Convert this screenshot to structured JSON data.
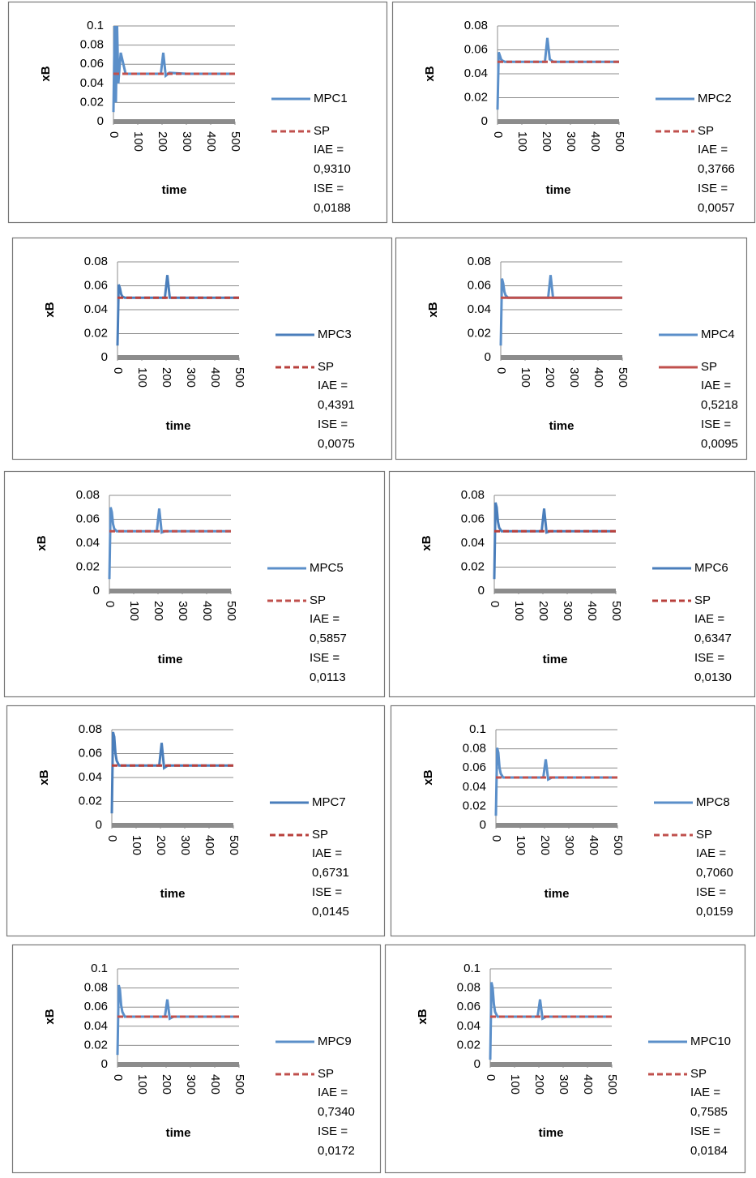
{
  "chart_data": [
    {
      "type": "line",
      "xlabel": "time",
      "ylabel": "xB",
      "x": [
        0,
        5,
        10,
        15,
        20,
        30,
        50,
        100,
        195,
        205,
        215,
        230,
        300,
        400,
        500
      ],
      "xlim": [
        0,
        500
      ],
      "xticks": [
        0,
        100,
        200,
        300,
        400,
        500
      ],
      "ylim": [
        0,
        0.1
      ],
      "yticks": [
        0,
        0.02,
        0.04,
        0.06,
        0.08,
        0.1
      ],
      "grid": true,
      "series": [
        {
          "name": "MPC1",
          "color": "#5b8fc9",
          "dashed": false,
          "values": [
            0.01,
            0.1,
            0.02,
            0.1,
            0.04,
            0.072,
            0.05,
            0.05,
            0.05,
            0.072,
            0.048,
            0.051,
            0.05,
            0.05,
            0.05
          ]
        },
        {
          "name": "SP",
          "color": "#c0504d",
          "dashed": true,
          "values": [
            0.05,
            0.05,
            0.05,
            0.05,
            0.05,
            0.05,
            0.05,
            0.05,
            0.05,
            0.05,
            0.05,
            0.05,
            0.05,
            0.05,
            0.05
          ]
        }
      ],
      "annotations": [
        "IAE =",
        "0,9310",
        "ISE =",
        "0,0188"
      ]
    },
    {
      "type": "line",
      "xlabel": "time",
      "ylabel": "xB",
      "x": [
        0,
        5,
        10,
        15,
        20,
        30,
        50,
        100,
        195,
        205,
        215,
        230,
        300,
        400,
        500
      ],
      "xlim": [
        0,
        500
      ],
      "xticks": [
        0,
        100,
        200,
        300,
        400,
        500
      ],
      "ylim": [
        0,
        0.08
      ],
      "yticks": [
        0,
        0.02,
        0.04,
        0.06,
        0.08
      ],
      "grid": true,
      "series": [
        {
          "name": "MPC2",
          "color": "#5b8fc9",
          "dashed": false,
          "values": [
            0.01,
            0.058,
            0.055,
            0.052,
            0.051,
            0.05,
            0.05,
            0.05,
            0.05,
            0.07,
            0.052,
            0.05,
            0.05,
            0.05,
            0.05
          ]
        },
        {
          "name": "SP",
          "color": "#c0504d",
          "dashed": true,
          "values": [
            0.05,
            0.05,
            0.05,
            0.05,
            0.05,
            0.05,
            0.05,
            0.05,
            0.05,
            0.05,
            0.05,
            0.05,
            0.05,
            0.05,
            0.05
          ]
        }
      ],
      "annotations": [
        "IAE =",
        "0,3766",
        "ISE =",
        "0,0057"
      ]
    },
    {
      "type": "line",
      "xlabel": "time",
      "ylabel": "xB",
      "x": [
        0,
        5,
        10,
        15,
        20,
        30,
        50,
        100,
        195,
        205,
        215,
        230,
        300,
        400,
        500
      ],
      "xlim": [
        0,
        500
      ],
      "xticks": [
        0,
        100,
        200,
        300,
        400,
        500
      ],
      "ylim": [
        0,
        0.08
      ],
      "yticks": [
        0,
        0.02,
        0.04,
        0.06,
        0.08
      ],
      "grid": true,
      "series": [
        {
          "name": "MPC3",
          "color": "#4a7ebb",
          "dashed": false,
          "values": [
            0.01,
            0.061,
            0.058,
            0.053,
            0.051,
            0.05,
            0.05,
            0.05,
            0.05,
            0.069,
            0.05,
            0.05,
            0.05,
            0.05,
            0.05
          ]
        },
        {
          "name": "SP",
          "color": "#b8403c",
          "dashed": true,
          "values": [
            0.05,
            0.05,
            0.05,
            0.05,
            0.05,
            0.05,
            0.05,
            0.05,
            0.05,
            0.05,
            0.05,
            0.05,
            0.05,
            0.05,
            0.05
          ]
        }
      ],
      "annotations": [
        "IAE =",
        "0,4391",
        "ISE =",
        "0,0075"
      ]
    },
    {
      "type": "line",
      "xlabel": "time",
      "ylabel": "xB",
      "x": [
        0,
        5,
        10,
        15,
        20,
        30,
        50,
        100,
        195,
        205,
        215,
        230,
        300,
        400,
        500
      ],
      "xlim": [
        0,
        500
      ],
      "xticks": [
        0,
        100,
        200,
        300,
        400,
        500
      ],
      "ylim": [
        0,
        0.08
      ],
      "yticks": [
        0,
        0.02,
        0.04,
        0.06,
        0.08
      ],
      "grid": true,
      "series": [
        {
          "name": "MPC4",
          "color": "#5b8fc9",
          "dashed": false,
          "values": [
            0.01,
            0.066,
            0.062,
            0.055,
            0.052,
            0.05,
            0.05,
            0.05,
            0.05,
            0.069,
            0.05,
            0.05,
            0.05,
            0.05,
            0.05
          ]
        },
        {
          "name": "SP",
          "color": "#c0504d",
          "dashed": false,
          "values": [
            0.05,
            0.05,
            0.05,
            0.05,
            0.05,
            0.05,
            0.05,
            0.05,
            0.05,
            0.05,
            0.05,
            0.05,
            0.05,
            0.05,
            0.05
          ]
        }
      ],
      "annotations": [
        "IAE =",
        "0,5218",
        "ISE =",
        "0,0095"
      ]
    },
    {
      "type": "line",
      "xlabel": "time",
      "ylabel": "xB",
      "x": [
        0,
        5,
        10,
        15,
        20,
        30,
        50,
        100,
        195,
        205,
        215,
        230,
        300,
        400,
        500
      ],
      "xlim": [
        0,
        500
      ],
      "xticks": [
        0,
        100,
        200,
        300,
        400,
        500
      ],
      "ylim": [
        0,
        0.08
      ],
      "yticks": [
        0,
        0.02,
        0.04,
        0.06,
        0.08
      ],
      "grid": true,
      "series": [
        {
          "name": "MPC5",
          "color": "#5b8fc9",
          "dashed": false,
          "values": [
            0.01,
            0.07,
            0.066,
            0.056,
            0.052,
            0.05,
            0.05,
            0.05,
            0.05,
            0.069,
            0.049,
            0.05,
            0.05,
            0.05,
            0.05
          ]
        },
        {
          "name": "SP",
          "color": "#c0504d",
          "dashed": true,
          "values": [
            0.05,
            0.05,
            0.05,
            0.05,
            0.05,
            0.05,
            0.05,
            0.05,
            0.05,
            0.05,
            0.05,
            0.05,
            0.05,
            0.05,
            0.05
          ]
        }
      ],
      "annotations": [
        "IAE =",
        "0,5857",
        "ISE =",
        "0,0113"
      ]
    },
    {
      "type": "line",
      "xlabel": "time",
      "ylabel": "xB",
      "x": [
        0,
        5,
        10,
        15,
        20,
        30,
        50,
        100,
        195,
        205,
        215,
        230,
        300,
        400,
        500
      ],
      "xlim": [
        0,
        500
      ],
      "xticks": [
        0,
        100,
        200,
        300,
        400,
        500
      ],
      "ylim": [
        0,
        0.08
      ],
      "yticks": [
        0,
        0.02,
        0.04,
        0.06,
        0.08
      ],
      "grid": true,
      "series": [
        {
          "name": "MPC6",
          "color": "#4a7ebb",
          "dashed": false,
          "values": [
            0.01,
            0.074,
            0.07,
            0.058,
            0.053,
            0.05,
            0.05,
            0.05,
            0.05,
            0.069,
            0.049,
            0.05,
            0.05,
            0.05,
            0.05
          ]
        },
        {
          "name": "SP",
          "color": "#b8403c",
          "dashed": true,
          "values": [
            0.05,
            0.05,
            0.05,
            0.05,
            0.05,
            0.05,
            0.05,
            0.05,
            0.05,
            0.05,
            0.05,
            0.05,
            0.05,
            0.05,
            0.05
          ]
        }
      ],
      "annotations": [
        "IAE =",
        "0,6347",
        "ISE =",
        "0,0130"
      ]
    },
    {
      "type": "line",
      "xlabel": "time",
      "ylabel": "xB",
      "x": [
        0,
        5,
        10,
        15,
        20,
        30,
        50,
        100,
        195,
        205,
        215,
        230,
        300,
        400,
        500
      ],
      "xlim": [
        0,
        500
      ],
      "xticks": [
        0,
        100,
        200,
        300,
        400,
        500
      ],
      "ylim": [
        0,
        0.08
      ],
      "yticks": [
        0,
        0.02,
        0.04,
        0.06,
        0.08
      ],
      "grid": true,
      "series": [
        {
          "name": "MPC7",
          "color": "#4a7ebb",
          "dashed": false,
          "values": [
            0.01,
            0.078,
            0.074,
            0.06,
            0.054,
            0.05,
            0.05,
            0.05,
            0.05,
            0.069,
            0.048,
            0.05,
            0.05,
            0.05,
            0.05
          ]
        },
        {
          "name": "SP",
          "color": "#b8403c",
          "dashed": true,
          "values": [
            0.05,
            0.05,
            0.05,
            0.05,
            0.05,
            0.05,
            0.05,
            0.05,
            0.05,
            0.05,
            0.05,
            0.05,
            0.05,
            0.05,
            0.05
          ]
        }
      ],
      "annotations": [
        "IAE =",
        "0,6731",
        "ISE =",
        "0,0145"
      ]
    },
    {
      "type": "line",
      "xlabel": "time",
      "ylabel": "xB",
      "x": [
        0,
        5,
        10,
        15,
        20,
        30,
        50,
        100,
        195,
        205,
        215,
        230,
        300,
        400,
        500
      ],
      "xlim": [
        0,
        500
      ],
      "xticks": [
        0,
        100,
        200,
        300,
        400,
        500
      ],
      "ylim": [
        0,
        0.1
      ],
      "yticks": [
        0,
        0.02,
        0.04,
        0.06,
        0.08,
        0.1
      ],
      "grid": true,
      "series": [
        {
          "name": "MPC8",
          "color": "#5b8fc9",
          "dashed": false,
          "values": [
            0.01,
            0.081,
            0.076,
            0.06,
            0.054,
            0.05,
            0.05,
            0.05,
            0.05,
            0.069,
            0.048,
            0.05,
            0.05,
            0.05,
            0.05
          ]
        },
        {
          "name": "SP",
          "color": "#c0504d",
          "dashed": true,
          "values": [
            0.05,
            0.05,
            0.05,
            0.05,
            0.05,
            0.05,
            0.05,
            0.05,
            0.05,
            0.05,
            0.05,
            0.05,
            0.05,
            0.05,
            0.05
          ]
        }
      ],
      "annotations": [
        "IAE =",
        "0,7060",
        "ISE =",
        "0,0159"
      ]
    },
    {
      "type": "line",
      "xlabel": "time",
      "ylabel": "xB",
      "x": [
        0,
        5,
        10,
        15,
        20,
        30,
        50,
        100,
        195,
        205,
        215,
        230,
        300,
        400,
        500
      ],
      "xlim": [
        0,
        500
      ],
      "xticks": [
        0,
        100,
        200,
        300,
        400,
        500
      ],
      "ylim": [
        0,
        0.1
      ],
      "yticks": [
        0,
        0.02,
        0.04,
        0.06,
        0.08,
        0.1
      ],
      "grid": true,
      "series": [
        {
          "name": "MPC9",
          "color": "#5b8fc9",
          "dashed": false,
          "values": [
            0.01,
            0.083,
            0.078,
            0.062,
            0.055,
            0.05,
            0.05,
            0.05,
            0.05,
            0.068,
            0.048,
            0.05,
            0.05,
            0.05,
            0.05
          ]
        },
        {
          "name": "SP",
          "color": "#c0504d",
          "dashed": true,
          "values": [
            0.05,
            0.05,
            0.05,
            0.05,
            0.05,
            0.05,
            0.05,
            0.05,
            0.05,
            0.05,
            0.05,
            0.05,
            0.05,
            0.05,
            0.05
          ]
        }
      ],
      "annotations": [
        "IAE =",
        "0,7340",
        "ISE =",
        "0,0172"
      ]
    },
    {
      "type": "line",
      "xlabel": "time",
      "ylabel": "xB",
      "x": [
        0,
        5,
        10,
        15,
        20,
        30,
        50,
        100,
        195,
        205,
        215,
        230,
        300,
        400,
        500
      ],
      "xlim": [
        0,
        500
      ],
      "xticks": [
        0,
        100,
        200,
        300,
        400,
        500
      ],
      "ylim": [
        0,
        0.1
      ],
      "yticks": [
        0,
        0.02,
        0.04,
        0.06,
        0.08,
        0.1
      ],
      "grid": true,
      "series": [
        {
          "name": "MPC10",
          "color": "#5b8fc9",
          "dashed": false,
          "values": [
            0.005,
            0.086,
            0.08,
            0.063,
            0.055,
            0.05,
            0.05,
            0.05,
            0.05,
            0.068,
            0.048,
            0.05,
            0.05,
            0.05,
            0.05
          ]
        },
        {
          "name": "SP",
          "color": "#c0504d",
          "dashed": true,
          "values": [
            0.05,
            0.05,
            0.05,
            0.05,
            0.05,
            0.05,
            0.05,
            0.05,
            0.05,
            0.05,
            0.05,
            0.05,
            0.05,
            0.05,
            0.05
          ]
        }
      ],
      "annotations": [
        "IAE =",
        "0,7585",
        "ISE =",
        "0,0184"
      ]
    }
  ]
}
